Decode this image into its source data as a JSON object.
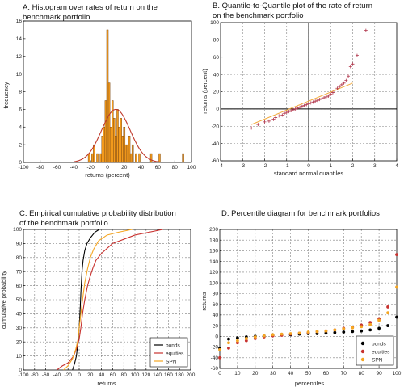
{
  "colors": {
    "bar_fill": "#f39a1c",
    "bar_stroke": "#6b3d10",
    "normal_curve": "#c0392b",
    "qq_points": "#b0344a",
    "qq_line": "#f2a93b",
    "bonds": "#000000",
    "equities": "#c8322f",
    "spn": "#f5a623",
    "grid": "#7f7f7f"
  },
  "chart_data": [
    {
      "id": "A",
      "type": "bar",
      "title_lines": [
        "A. Histogram over rates of return on the",
        "benchmark portfolio"
      ],
      "xlabel": "returns (percent)",
      "ylabel": "frequency",
      "xlim": [
        -100,
        100
      ],
      "ylim": [
        0,
        16
      ],
      "xticks": [
        -100,
        -80,
        -60,
        -40,
        -20,
        0,
        20,
        40,
        60,
        80,
        100
      ],
      "yticks": [
        0,
        2,
        4,
        6,
        8,
        10,
        12,
        14,
        16
      ],
      "grid": false,
      "bin_width": 2,
      "bars": [
        {
          "x": -22,
          "v": 1
        },
        {
          "x": -18,
          "v": 1
        },
        {
          "x": -16,
          "v": 2
        },
        {
          "x": -12,
          "v": 1
        },
        {
          "x": -8,
          "v": 1
        },
        {
          "x": -6,
          "v": 3
        },
        {
          "x": -4,
          "v": 4
        },
        {
          "x": -2,
          "v": 7
        },
        {
          "x": 0,
          "v": 15
        },
        {
          "x": 2,
          "v": 9
        },
        {
          "x": 4,
          "v": 4
        },
        {
          "x": 6,
          "v": 7
        },
        {
          "x": 8,
          "v": 5
        },
        {
          "x": 10,
          "v": 3
        },
        {
          "x": 12,
          "v": 6
        },
        {
          "x": 14,
          "v": 4
        },
        {
          "x": 16,
          "v": 5
        },
        {
          "x": 18,
          "v": 3
        },
        {
          "x": 20,
          "v": 4
        },
        {
          "x": 22,
          "v": 2
        },
        {
          "x": 24,
          "v": 2
        },
        {
          "x": 26,
          "v": 3
        },
        {
          "x": 28,
          "v": 1
        },
        {
          "x": 30,
          "v": 2
        },
        {
          "x": 34,
          "v": 1
        },
        {
          "x": 38,
          "v": 1
        },
        {
          "x": 52,
          "v": 1
        },
        {
          "x": 62,
          "v": 1
        },
        {
          "x": 90,
          "v": 1
        }
      ],
      "normal_curve": {
        "mean": 10,
        "sd": 17,
        "peak": 6
      }
    },
    {
      "id": "B",
      "type": "scatter",
      "title_lines": [
        "B. Quantile-to-Quantile plot of the rate of return",
        "on the benchmark portfolio"
      ],
      "xlabel": "standard normal quantiles",
      "ylabel": "returns (percent)",
      "xlim": [
        -4,
        4
      ],
      "ylim": [
        -60,
        100
      ],
      "xticks": [
        -4,
        -3,
        -2,
        -1,
        0,
        1,
        2,
        3,
        4
      ],
      "yticks": [
        -60,
        -40,
        -20,
        0,
        20,
        40,
        60,
        80,
        100
      ],
      "grid": true,
      "points": [
        [
          -2.6,
          -22
        ],
        [
          -2.3,
          -18
        ],
        [
          -2.0,
          -15
        ],
        [
          -1.8,
          -14
        ],
        [
          -1.6,
          -12
        ],
        [
          -1.5,
          -10
        ],
        [
          -1.35,
          -8
        ],
        [
          -1.2,
          -7
        ],
        [
          -1.1,
          -5
        ],
        [
          -1.0,
          -4
        ],
        [
          -0.9,
          -3
        ],
        [
          -0.8,
          -2
        ],
        [
          -0.7,
          -1
        ],
        [
          -0.6,
          0
        ],
        [
          -0.5,
          1
        ],
        [
          -0.4,
          2
        ],
        [
          -0.3,
          3
        ],
        [
          -0.2,
          4
        ],
        [
          -0.1,
          5
        ],
        [
          0.0,
          6
        ],
        [
          0.1,
          7
        ],
        [
          0.2,
          8
        ],
        [
          0.3,
          9
        ],
        [
          0.4,
          10
        ],
        [
          0.5,
          11
        ],
        [
          0.6,
          12
        ],
        [
          0.7,
          13
        ],
        [
          0.8,
          14
        ],
        [
          0.9,
          15
        ],
        [
          1.0,
          17
        ],
        [
          1.1,
          19
        ],
        [
          1.2,
          22
        ],
        [
          1.3,
          24
        ],
        [
          1.4,
          26
        ],
        [
          1.5,
          28
        ],
        [
          1.6,
          30
        ],
        [
          1.7,
          33
        ],
        [
          1.8,
          38
        ],
        [
          1.9,
          49
        ],
        [
          2.0,
          52
        ],
        [
          2.2,
          62
        ],
        [
          2.6,
          91
        ]
      ],
      "fit_line": {
        "x": [
          -2.6,
          2.0
        ],
        "y": [
          -18,
          30
        ]
      }
    },
    {
      "id": "C",
      "type": "line",
      "title_lines": [
        "C. Empirical cumulative probability distribution",
        "of the benchmark portfolio"
      ],
      "xlabel": "returns",
      "ylabel": "cumulative probability",
      "xlim": [
        -100,
        200
      ],
      "ylim": [
        0,
        100
      ],
      "xticks": [
        -100,
        -80,
        -60,
        -40,
        -20,
        0,
        20,
        40,
        60,
        80,
        100,
        120,
        140,
        160,
        180,
        200
      ],
      "yticks": [
        0,
        10,
        20,
        30,
        40,
        50,
        60,
        70,
        80,
        90,
        100
      ],
      "grid": true,
      "legend_position": "bottom-right",
      "series": [
        {
          "name": "bonds",
          "color_key": "bonds",
          "x": [
            -12,
            -8,
            -5,
            -2,
            0,
            2,
            3,
            5,
            7,
            10,
            14,
            20,
            28,
            36
          ],
          "y": [
            0,
            5,
            10,
            20,
            30,
            45,
            55,
            70,
            78,
            85,
            90,
            94,
            98,
            100
          ]
        },
        {
          "name": "equities",
          "color_key": "equities",
          "x": [
            -40,
            -30,
            -20,
            -10,
            -5,
            0,
            3,
            6,
            10,
            15,
            20,
            25,
            30,
            40,
            60,
            100,
            150
          ],
          "y": [
            0,
            3,
            5,
            10,
            15,
            22,
            30,
            40,
            50,
            60,
            67,
            73,
            78,
            83,
            90,
            96,
            100
          ]
        },
        {
          "name": "SPN",
          "color_key": "spn",
          "x": [
            -28,
            -20,
            -12,
            -6,
            -2,
            0,
            3,
            6,
            10,
            15,
            20,
            26,
            35,
            50,
            70,
            95
          ],
          "y": [
            0,
            3,
            8,
            15,
            22,
            30,
            40,
            50,
            62,
            72,
            80,
            86,
            92,
            96,
            98,
            100
          ]
        }
      ]
    },
    {
      "id": "D",
      "type": "scatter",
      "title_lines": [
        "D. Percentile diagram for benchmark portfolios"
      ],
      "xlabel": "percentiles",
      "ylabel": "returns",
      "xlim": [
        0,
        100
      ],
      "ylim": [
        -60,
        200
      ],
      "xticks": [
        0,
        10,
        20,
        30,
        40,
        50,
        60,
        70,
        80,
        90,
        100
      ],
      "yticks": [
        -60,
        -40,
        -20,
        0,
        20,
        40,
        60,
        80,
        100,
        120,
        140,
        160,
        180,
        200
      ],
      "grid": true,
      "legend_position": "bottom-right",
      "x": [
        0,
        5,
        10,
        15,
        20,
        25,
        30,
        35,
        40,
        45,
        50,
        55,
        60,
        65,
        70,
        75,
        80,
        85,
        90,
        95,
        100
      ],
      "series": [
        {
          "name": "bonds",
          "color_key": "bonds",
          "values": [
            -22,
            -5,
            -3,
            -1,
            0,
            1,
            2,
            3,
            3,
            4,
            5,
            5,
            6,
            7,
            8,
            9,
            10,
            12,
            15,
            20,
            36
          ]
        },
        {
          "name": "equities",
          "color_key": "equities",
          "values": [
            -40,
            -22,
            -12,
            -8,
            -4,
            -1,
            1,
            2,
            4,
            6,
            7,
            9,
            10,
            12,
            15,
            17,
            21,
            26,
            33,
            55,
            153
          ]
        },
        {
          "name": "SPN",
          "color_key": "spn",
          "values": [
            -25,
            -12,
            -8,
            -4,
            -1,
            1,
            3,
            4,
            5,
            6,
            8,
            9,
            10,
            12,
            14,
            16,
            18,
            22,
            30,
            44,
            92
          ]
        }
      ]
    }
  ]
}
